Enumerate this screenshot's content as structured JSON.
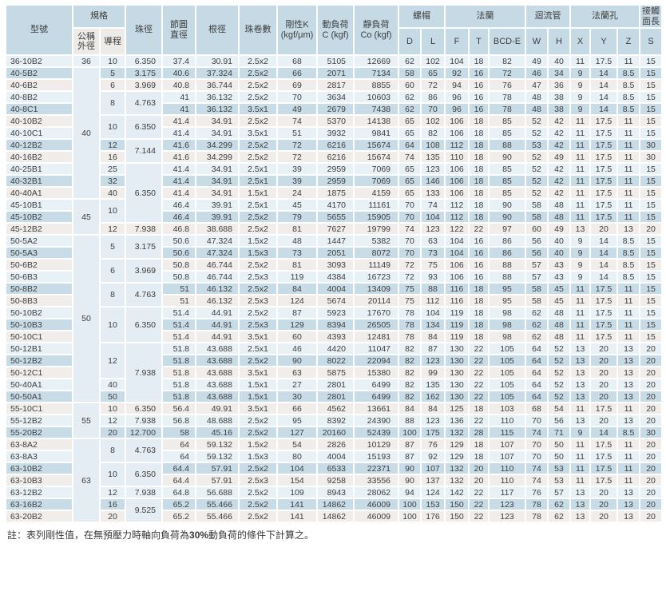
{
  "table": {
    "headers": {
      "model": "型號",
      "spec_group": "規格",
      "dia": "公稱\n外徑",
      "lead": "導程",
      "ball": "珠徑",
      "pcd": "節圓\n直徑",
      "root": "根徑",
      "circuits": "珠卷數",
      "k": "剛性K\n(kgf/μm)",
      "c": "動負荷\nC (kgf)",
      "co": "靜負荷\nCo (kgf)",
      "nut_group": "螺帽",
      "flange_group": "法蘭",
      "tube_group": "迴流管",
      "hole_group": "法蘭孔",
      "contact_group": "接觸\n面長",
      "sub_headers": [
        "D",
        "L",
        "F",
        "T",
        "BCD-E",
        "W",
        "H",
        "X",
        "Y",
        "Z",
        "S"
      ]
    },
    "column_keys": [
      "model",
      "dia",
      "lead",
      "ball",
      "pcd",
      "root",
      "circuits",
      "k",
      "c",
      "co",
      "d",
      "l",
      "f",
      "t",
      "bcd",
      "w",
      "h",
      "x",
      "y",
      "z",
      "s"
    ],
    "rows": [
      [
        "36-10B2",
        "36",
        "10",
        "6.350",
        "37.4",
        "30.91",
        "2.5x2",
        "68",
        "5105",
        "12669",
        "62",
        "102",
        "104",
        "18",
        "82",
        "49",
        "40",
        "11",
        "17.5",
        "11",
        "15"
      ],
      [
        "40-5B2",
        "40",
        "5",
        "3.175",
        "40.6",
        "37.324",
        "2.5x2",
        "66",
        "2071",
        "7134",
        "58",
        "65",
        "92",
        "16",
        "72",
        "46",
        "34",
        "9",
        "14",
        "8.5",
        "15"
      ],
      [
        "40-6B2",
        "",
        "6",
        "3.969",
        "40.8",
        "36.744",
        "2.5x2",
        "69",
        "2817",
        "8855",
        "60",
        "72",
        "94",
        "16",
        "76",
        "47",
        "36",
        "9",
        "14",
        "8.5",
        "15"
      ],
      [
        "40-8B2",
        "",
        "8",
        "4.763",
        "41",
        "36.132",
        "2.5x2",
        "70",
        "3634",
        "10603",
        "62",
        "86",
        "96",
        "16",
        "78",
        "48",
        "38",
        "9",
        "14",
        "8.5",
        "15"
      ],
      [
        "40-8C1",
        "",
        "",
        "",
        "41",
        "36.132",
        "3.5x1",
        "49",
        "2679",
        "7438",
        "62",
        "70",
        "96",
        "16",
        "78",
        "48",
        "38",
        "9",
        "14",
        "8.5",
        "15"
      ],
      [
        "40-10B2",
        "",
        "10",
        "6.350",
        "41.4",
        "34.91",
        "2.5x2",
        "74",
        "5370",
        "14138",
        "65",
        "102",
        "106",
        "18",
        "85",
        "52",
        "42",
        "11",
        "17.5",
        "11",
        "15"
      ],
      [
        "40-10C1",
        "",
        "",
        "",
        "41.4",
        "34.91",
        "3.5x1",
        "51",
        "3932",
        "9841",
        "65",
        "82",
        "106",
        "18",
        "85",
        "52",
        "42",
        "11",
        "17.5",
        "11",
        "15"
      ],
      [
        "40-12B2",
        "",
        "12",
        "7.144",
        "41.6",
        "34.299",
        "2.5x2",
        "72",
        "6216",
        "15674",
        "64",
        "108",
        "112",
        "18",
        "88",
        "53",
        "42",
        "11",
        "17.5",
        "11",
        "30"
      ],
      [
        "40-16B2",
        "",
        "16",
        "",
        "41.6",
        "34.299",
        "2.5x2",
        "72",
        "6216",
        "15674",
        "74",
        "135",
        "110",
        "18",
        "90",
        "52",
        "49",
        "11",
        "17.5",
        "11",
        "30"
      ],
      [
        "40-25B1",
        "",
        "25",
        "6.350",
        "41.4",
        "34.91",
        "2.5x1",
        "39",
        "2959",
        "7069",
        "65",
        "123",
        "106",
        "18",
        "85",
        "52",
        "42",
        "11",
        "17.5",
        "11",
        "15"
      ],
      [
        "40-32B1",
        "",
        "32",
        "",
        "41.4",
        "34.91",
        "2.5x1",
        "39",
        "2959",
        "7069",
        "65",
        "146",
        "106",
        "18",
        "85",
        "52",
        "42",
        "11",
        "17.5",
        "11",
        "15"
      ],
      [
        "40-40A1",
        "",
        "40",
        "",
        "41.4",
        "34.91",
        "1.5x1",
        "24",
        "1875",
        "4159",
        "65",
        "133",
        "106",
        "18",
        "85",
        "52",
        "42",
        "11",
        "17.5",
        "11",
        "15"
      ],
      [
        "45-10B1",
        "45",
        "10",
        "",
        "46.4",
        "39.91",
        "2.5x1",
        "45",
        "4170",
        "11161",
        "70",
        "74",
        "112",
        "18",
        "90",
        "58",
        "48",
        "11",
        "17.5",
        "11",
        "15"
      ],
      [
        "45-10B2",
        "",
        "",
        "",
        "46.4",
        "39.91",
        "2.5x2",
        "79",
        "5655",
        "15905",
        "70",
        "104",
        "112",
        "18",
        "90",
        "58",
        "48",
        "11",
        "17.5",
        "11",
        "15"
      ],
      [
        "45-12B2",
        "",
        "12",
        "7.938",
        "46.8",
        "38.688",
        "2.5x2",
        "81",
        "7627",
        "19799",
        "74",
        "123",
        "122",
        "22",
        "97",
        "60",
        "49",
        "13",
        "20",
        "13",
        "20"
      ],
      [
        "50-5A2",
        "50",
        "5",
        "3.175",
        "50.6",
        "47.324",
        "1.5x2",
        "48",
        "1447",
        "5382",
        "70",
        "63",
        "104",
        "16",
        "86",
        "56",
        "40",
        "9",
        "14",
        "8.5",
        "15"
      ],
      [
        "50-5A3",
        "",
        "",
        "",
        "50.6",
        "47.324",
        "1.5x3",
        "73",
        "2051",
        "8072",
        "70",
        "73",
        "104",
        "16",
        "86",
        "56",
        "40",
        "9",
        "14",
        "8.5",
        "15"
      ],
      [
        "50-6B2",
        "",
        "6",
        "3.969",
        "50.8",
        "46.744",
        "2.5x2",
        "81",
        "3093",
        "11149",
        "72",
        "75",
        "106",
        "16",
        "88",
        "57",
        "43",
        "9",
        "14",
        "8.5",
        "15"
      ],
      [
        "50-6B3",
        "",
        "",
        "",
        "50.8",
        "46.744",
        "2.5x3",
        "119",
        "4384",
        "16723",
        "72",
        "93",
        "106",
        "16",
        "88",
        "57",
        "43",
        "9",
        "14",
        "8.5",
        "15"
      ],
      [
        "50-8B2",
        "",
        "8",
        "4.763",
        "51",
        "46.132",
        "2.5x2",
        "84",
        "4004",
        "13409",
        "75",
        "88",
        "116",
        "18",
        "95",
        "58",
        "45",
        "11",
        "17.5",
        "11",
        "15"
      ],
      [
        "50-8B3",
        "",
        "",
        "",
        "51",
        "46.132",
        "2.5x3",
        "124",
        "5674",
        "20114",
        "75",
        "112",
        "116",
        "18",
        "95",
        "58",
        "45",
        "11",
        "17.5",
        "11",
        "15"
      ],
      [
        "50-10B2",
        "",
        "10",
        "6.350",
        "51.4",
        "44.91",
        "2.5x2",
        "87",
        "5923",
        "17670",
        "78",
        "104",
        "119",
        "18",
        "98",
        "62",
        "48",
        "11",
        "17.5",
        "11",
        "15"
      ],
      [
        "50-10B3",
        "",
        "",
        "",
        "51.4",
        "44.91",
        "2.5x3",
        "129",
        "8394",
        "26505",
        "78",
        "134",
        "119",
        "18",
        "98",
        "62",
        "48",
        "11",
        "17.5",
        "11",
        "15"
      ],
      [
        "50-10C1",
        "",
        "",
        "",
        "51.4",
        "44.91",
        "3.5x1",
        "60",
        "4393",
        "12481",
        "78",
        "84",
        "119",
        "18",
        "98",
        "62",
        "48",
        "11",
        "17.5",
        "11",
        "15"
      ],
      [
        "50-12B1",
        "",
        "12",
        "7.938",
        "51.8",
        "43.688",
        "2.5x1",
        "46",
        "4420",
        "11047",
        "82",
        "87",
        "130",
        "22",
        "105",
        "64",
        "52",
        "13",
        "20",
        "13",
        "20"
      ],
      [
        "50-12B2",
        "",
        "",
        "",
        "51.8",
        "43.688",
        "2.5x2",
        "90",
        "8022",
        "22094",
        "82",
        "123",
        "130",
        "22",
        "105",
        "64",
        "52",
        "13",
        "20",
        "13",
        "20"
      ],
      [
        "50-12C1",
        "",
        "",
        "",
        "51.8",
        "43.688",
        "3.5x1",
        "63",
        "5875",
        "15380",
        "82",
        "99",
        "130",
        "22",
        "105",
        "64",
        "52",
        "13",
        "20",
        "13",
        "20"
      ],
      [
        "50-40A1",
        "",
        "40",
        "",
        "51.8",
        "43.688",
        "1.5x1",
        "27",
        "2801",
        "6499",
        "82",
        "135",
        "130",
        "22",
        "105",
        "64",
        "52",
        "13",
        "20",
        "13",
        "20"
      ],
      [
        "50-50A1",
        "",
        "50",
        "",
        "51.8",
        "43.688",
        "1.5x1",
        "30",
        "2801",
        "6499",
        "82",
        "162",
        "130",
        "22",
        "105",
        "64",
        "52",
        "13",
        "20",
        "13",
        "20"
      ],
      [
        "55-10C1",
        "55",
        "10",
        "6.350",
        "56.4",
        "49.91",
        "3.5x1",
        "66",
        "4562",
        "13661",
        "84",
        "84",
        "125",
        "18",
        "103",
        "68",
        "54",
        "11",
        "17.5",
        "11",
        "20"
      ],
      [
        "55-12B2",
        "",
        "12",
        "7.938",
        "56.8",
        "48.688",
        "2.5x2",
        "95",
        "8392",
        "24390",
        "88",
        "123",
        "136",
        "22",
        "110",
        "70",
        "56",
        "13",
        "20",
        "13",
        "20"
      ],
      [
        "55-20B2",
        "",
        "20",
        "12.700",
        "58",
        "45.16",
        "2.5x2",
        "127",
        "20160",
        "52439",
        "100",
        "175",
        "132",
        "28",
        "115",
        "74",
        "71",
        "9",
        "14",
        "8.5",
        "30"
      ],
      [
        "63-8A2",
        "63",
        "8",
        "4.763",
        "64",
        "59.132",
        "1.5x2",
        "54",
        "2826",
        "10129",
        "87",
        "76",
        "129",
        "18",
        "107",
        "70",
        "50",
        "11",
        "17.5",
        "11",
        "20"
      ],
      [
        "63-8A3",
        "",
        "",
        "",
        "64",
        "59.132",
        "1.5x3",
        "80",
        "4004",
        "15193",
        "87",
        "92",
        "129",
        "18",
        "107",
        "70",
        "50",
        "11",
        "17.5",
        "11",
        "20"
      ],
      [
        "63-10B2",
        "",
        "10",
        "6.350",
        "64.4",
        "57.91",
        "2.5x2",
        "104",
        "6533",
        "22371",
        "90",
        "107",
        "132",
        "20",
        "110",
        "74",
        "53",
        "11",
        "17.5",
        "11",
        "20"
      ],
      [
        "63-10B3",
        "",
        "",
        "",
        "64.4",
        "57.91",
        "2.5x3",
        "154",
        "9258",
        "33556",
        "90",
        "137",
        "132",
        "20",
        "110",
        "74",
        "53",
        "11",
        "17.5",
        "11",
        "20"
      ],
      [
        "63-12B2",
        "",
        "12",
        "7.938",
        "64.8",
        "56.688",
        "2.5x2",
        "109",
        "8943",
        "28062",
        "94",
        "124",
        "142",
        "22",
        "117",
        "76",
        "57",
        "13",
        "20",
        "13",
        "20"
      ],
      [
        "63-16B2",
        "",
        "16",
        "9.525",
        "65.2",
        "55.466",
        "2.5x2",
        "141",
        "14862",
        "46009",
        "100",
        "153",
        "150",
        "22",
        "123",
        "78",
        "62",
        "13",
        "20",
        "13",
        "20"
      ],
      [
        "63-20B2",
        "",
        "20",
        "",
        "65.2",
        "55.466",
        "2.5x2",
        "141",
        "14862",
        "46009",
        "100",
        "176",
        "150",
        "22",
        "123",
        "78",
        "62",
        "13",
        "20",
        "13",
        "20"
      ]
    ],
    "merges": {
      "1": [
        [
          1,
          11
        ],
        [
          12,
          3
        ],
        [
          15,
          14
        ],
        [
          29,
          3
        ],
        [
          32,
          7
        ]
      ],
      "2": [
        [
          3,
          2
        ],
        [
          5,
          2
        ],
        [
          12,
          2
        ],
        [
          15,
          2
        ],
        [
          17,
          2
        ],
        [
          19,
          2
        ],
        [
          21,
          3
        ],
        [
          24,
          3
        ],
        [
          32,
          2
        ],
        [
          34,
          2
        ]
      ],
      "3": [
        [
          3,
          2
        ],
        [
          5,
          2
        ],
        [
          7,
          2
        ],
        [
          9,
          5
        ],
        [
          15,
          2
        ],
        [
          17,
          2
        ],
        [
          19,
          2
        ],
        [
          21,
          3
        ],
        [
          24,
          5
        ],
        [
          32,
          2
        ],
        [
          34,
          2
        ],
        [
          37,
          2
        ]
      ]
    }
  },
  "note": {
    "prefix": "註：表列剛性值，在無預壓力時軸向負荷為",
    "bold": "30%",
    "suffix": "動負荷的條件下計算之。"
  },
  "colors": {
    "header_bg": "#c6dae6",
    "header_light_bg": "#edebe7",
    "row_pale_blue": "#e8f1f6",
    "row_medium_blue": "#c8dce8",
    "row_light_pink": "#f1edeb",
    "merged_cell_bg": "#e3edf3",
    "grid_line": "#ffffff",
    "text": "#3d3d3d"
  }
}
